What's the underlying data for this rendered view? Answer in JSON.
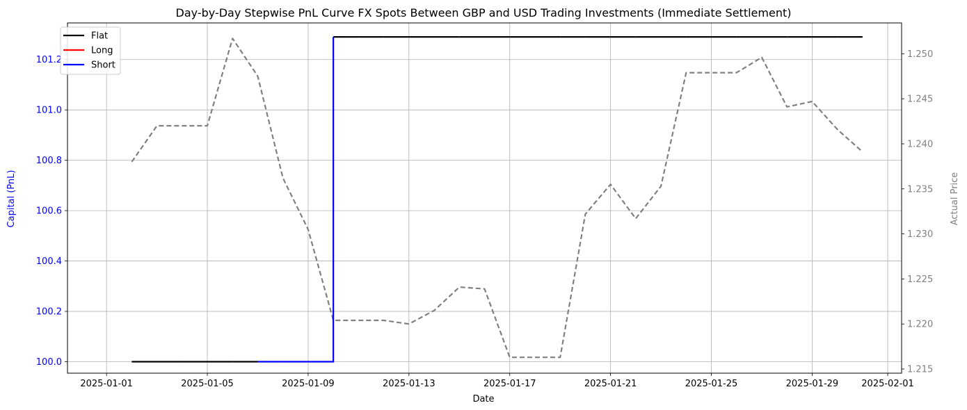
{
  "chart_data": {
    "type": "line",
    "title": "Day-by-Day Stepwise PnL Curve FX Spots Between GBP and USD Trading Investments (Immediate Settlement)",
    "xlabel": "Date",
    "ylabel_left": "Capital (PnL)",
    "ylabel_right": "Actual Price",
    "x_ticks": [
      "2025-01-01",
      "2025-01-05",
      "2025-01-09",
      "2025-01-13",
      "2025-01-17",
      "2025-01-21",
      "2025-01-25",
      "2025-01-29",
      "2025-02-01"
    ],
    "y_left_ticks": [
      "100.0",
      "100.2",
      "100.4",
      "100.6",
      "100.8",
      "101.0",
      "101.2"
    ],
    "y_right_ticks": [
      "1.215",
      "1.220",
      "1.225",
      "1.230",
      "1.235",
      "1.240",
      "1.245",
      "1.250"
    ],
    "xlim": [
      "2025-01-01",
      "2025-02-01"
    ],
    "ylim_left": [
      100.0,
      101.3
    ],
    "ylim_right": [
      1.215,
      1.253
    ],
    "grid": true,
    "legend_position": "top-left",
    "legend": [
      {
        "name": "Flat",
        "color": "#000000"
      },
      {
        "name": "Long",
        "color": "#ff0000"
      },
      {
        "name": "Short",
        "color": "#0000ff"
      }
    ],
    "capital_steps": [
      {
        "x": "2025-01-02",
        "y": 100.0,
        "position": "Flat"
      },
      {
        "x": "2025-01-03",
        "y": 100.0,
        "position": "Flat"
      },
      {
        "x": "2025-01-04",
        "y": 100.0,
        "position": "Flat"
      },
      {
        "x": "2025-01-05",
        "y": 100.0,
        "position": "Flat"
      },
      {
        "x": "2025-01-06",
        "y": 100.0,
        "position": "Flat"
      },
      {
        "x": "2025-01-07",
        "y": 100.0,
        "position": "Flat"
      },
      {
        "x": "2025-01-08",
        "y": 100.0,
        "position": "Short"
      },
      {
        "x": "2025-01-09",
        "y": 100.0,
        "position": "Short"
      },
      {
        "x": "2025-01-10",
        "y": 101.29,
        "position": "Short"
      },
      {
        "x": "2025-01-11",
        "y": 101.29,
        "position": "Flat"
      },
      {
        "x": "2025-01-12",
        "y": 101.29,
        "position": "Flat"
      },
      {
        "x": "2025-01-13",
        "y": 101.29,
        "position": "Flat"
      },
      {
        "x": "2025-01-14",
        "y": 101.29,
        "position": "Flat"
      },
      {
        "x": "2025-01-15",
        "y": 101.29,
        "position": "Flat"
      },
      {
        "x": "2025-01-16",
        "y": 101.29,
        "position": "Flat"
      },
      {
        "x": "2025-01-17",
        "y": 101.29,
        "position": "Flat"
      },
      {
        "x": "2025-01-18",
        "y": 101.29,
        "position": "Flat"
      },
      {
        "x": "2025-01-19",
        "y": 101.29,
        "position": "Flat"
      },
      {
        "x": "2025-01-20",
        "y": 101.29,
        "position": "Flat"
      },
      {
        "x": "2025-01-21",
        "y": 101.29,
        "position": "Flat"
      },
      {
        "x": "2025-01-22",
        "y": 101.29,
        "position": "Flat"
      },
      {
        "x": "2025-01-23",
        "y": 101.29,
        "position": "Flat"
      },
      {
        "x": "2025-01-24",
        "y": 101.29,
        "position": "Flat"
      },
      {
        "x": "2025-01-25",
        "y": 101.29,
        "position": "Flat"
      },
      {
        "x": "2025-01-26",
        "y": 101.29,
        "position": "Flat"
      },
      {
        "x": "2025-01-27",
        "y": 101.29,
        "position": "Flat"
      },
      {
        "x": "2025-01-28",
        "y": 101.29,
        "position": "Flat"
      },
      {
        "x": "2025-01-29",
        "y": 101.29,
        "position": "Flat"
      },
      {
        "x": "2025-01-30",
        "y": 101.29,
        "position": "Flat"
      },
      {
        "x": "2025-01-31",
        "y": 101.29,
        "position": "Flat"
      }
    ],
    "price_series": {
      "color": "#808080",
      "style": "dashed",
      "points": [
        {
          "x": "2025-01-02",
          "y": 1.238
        },
        {
          "x": "2025-01-03",
          "y": 1.242
        },
        {
          "x": "2025-01-04",
          "y": 1.242
        },
        {
          "x": "2025-01-05",
          "y": 1.242
        },
        {
          "x": "2025-01-06",
          "y": 1.2517
        },
        {
          "x": "2025-01-07",
          "y": 1.2475
        },
        {
          "x": "2025-01-08",
          "y": 1.2362
        },
        {
          "x": "2025-01-09",
          "y": 1.2305
        },
        {
          "x": "2025-01-10",
          "y": 1.2204
        },
        {
          "x": "2025-01-11",
          "y": 1.2204
        },
        {
          "x": "2025-01-12",
          "y": 1.2204
        },
        {
          "x": "2025-01-13",
          "y": 1.22
        },
        {
          "x": "2025-01-14",
          "y": 1.2215
        },
        {
          "x": "2025-01-15",
          "y": 1.2241
        },
        {
          "x": "2025-01-16",
          "y": 1.2239
        },
        {
          "x": "2025-01-17",
          "y": 1.2163
        },
        {
          "x": "2025-01-18",
          "y": 1.2163
        },
        {
          "x": "2025-01-19",
          "y": 1.2163
        },
        {
          "x": "2025-01-20",
          "y": 1.2322
        },
        {
          "x": "2025-01-21",
          "y": 1.2355
        },
        {
          "x": "2025-01-22",
          "y": 1.2317
        },
        {
          "x": "2025-01-23",
          "y": 1.2353
        },
        {
          "x": "2025-01-24",
          "y": 1.2479
        },
        {
          "x": "2025-01-25",
          "y": 1.2479
        },
        {
          "x": "2025-01-26",
          "y": 1.2479
        },
        {
          "x": "2025-01-27",
          "y": 1.2496
        },
        {
          "x": "2025-01-28",
          "y": 1.2441
        },
        {
          "x": "2025-01-29",
          "y": 1.2447
        },
        {
          "x": "2025-01-30",
          "y": 1.2416
        },
        {
          "x": "2025-01-31",
          "y": 1.2391
        }
      ]
    }
  }
}
